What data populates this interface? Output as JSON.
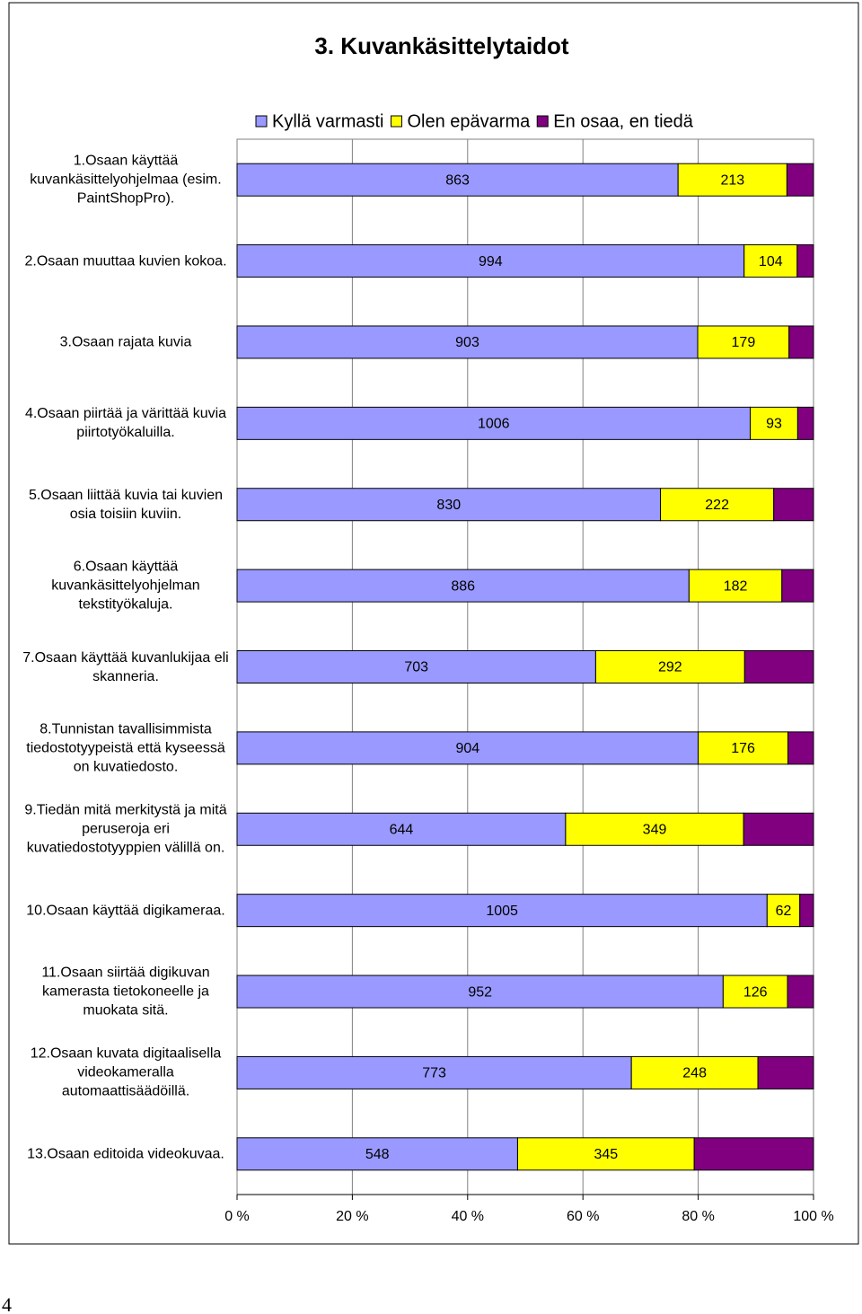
{
  "chart_data": {
    "type": "stacked_bar_100",
    "title": "3. Kuvankäsittelytaidot",
    "categories": [
      "1.Osaan käyttää kuvankäsittelyohjelmaa (esim. PaintShopPro).",
      "2.Osaan muuttaa kuvien kokoa.",
      "3.Osaan rajata kuvia",
      "4.Osaan piirtää ja värittää kuvia piirtotyökaluilla.",
      "5.Osaan liittää kuvia tai kuvien osia toisiin kuviin.",
      "6.Osaan käyttää kuvankäsittelyohjelman tekstityökaluja.",
      "7.Osaan käyttää kuvanlukijaa eli skanneria.",
      "8.Tunnistan tavallisimmista tiedostotyypeistä että kyseessä on kuvatiedosto.",
      "9.Tiedän mitä merkitystä ja mitä peruseroja eri kuvatiedostotyyppien välillä on.",
      "10.Osaan käyttää digikameraa.",
      "11.Osaan siirtää digikuvan kamerasta tietokoneelle ja muokata sitä.",
      "12.Osaan kuvata digitaalisella videokameralla automaattisäädöillä.",
      "13.Osaan editoida videokuvaa."
    ],
    "series": [
      {
        "name": "Kyllä varmasti",
        "color": "#9999ff",
        "values": [
          863,
          994,
          903,
          1006,
          830,
          886,
          703,
          904,
          644,
          1005,
          952,
          773,
          548
        ]
      },
      {
        "name": "Olen epävarma",
        "color": "#ffff00",
        "values": [
          213,
          104,
          179,
          93,
          222,
          182,
          292,
          176,
          349,
          62,
          126,
          248,
          345
        ]
      },
      {
        "name": "En osaa, en tiedä",
        "color": "#800080",
        "values": [
          52,
          32,
          48,
          31,
          78,
          62,
          135,
          50,
          137,
          26,
          51,
          109,
          233
        ]
      }
    ],
    "xlim": [
      0,
      100
    ],
    "xticks": [
      {
        "value": 0,
        "label": "0 %"
      },
      {
        "value": 20,
        "label": "20 %"
      },
      {
        "value": 40,
        "label": "40 %"
      },
      {
        "value": 60,
        "label": "60 %"
      },
      {
        "value": 80,
        "label": "80 %"
      },
      {
        "value": 100,
        "label": "100 %"
      }
    ],
    "grid": true
  },
  "page_number": "4"
}
